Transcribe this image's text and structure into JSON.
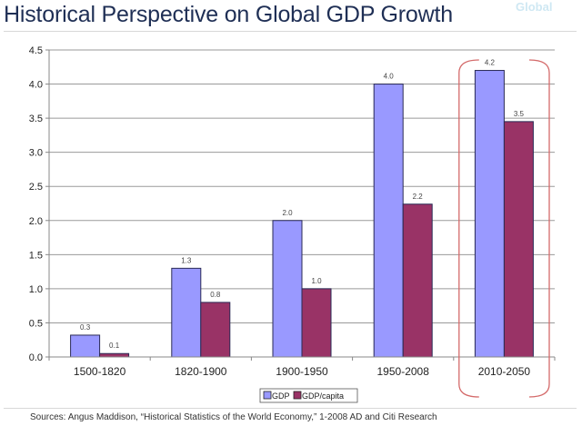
{
  "header": {
    "title": "Historical Perspective on Global GDP Growth",
    "brand": "Global"
  },
  "footer": {
    "source": "Sources: Angus Maddison, “Historical Statistics of the World Economy,” 1-2008 AD and Citi Research"
  },
  "colors": {
    "gdp": "#9999ff",
    "gdp_capita": "#993366",
    "bar_outline": "#2a2a55",
    "highlight": "#d46a6a",
    "gridline": "#9a9a9a"
  },
  "chart_data": {
    "type": "bar",
    "title": "Historical Perspective on Global GDP Growth",
    "xlabel": "",
    "ylabel": "",
    "ylim": [
      0,
      4.5
    ],
    "yticks": [
      "0.0",
      "0.5",
      "1.0",
      "1.5",
      "2.0",
      "2.5",
      "3.0",
      "3.5",
      "4.0",
      "4.5"
    ],
    "grid": true,
    "legend_position": "bottom",
    "categories": [
      "1500-1820",
      "1820-1900",
      "1900-1950",
      "1950-2008",
      "2010-2050"
    ],
    "series": [
      {
        "name": "GDP",
        "values": [
          0.32,
          1.3,
          2.0,
          4.0,
          4.2
        ],
        "labels": [
          "0.3",
          "1.3",
          "2.0",
          "4.0",
          "4.2"
        ]
      },
      {
        "name": "GDP/capita",
        "values": [
          0.05,
          0.8,
          1.0,
          2.24,
          3.45
        ],
        "labels": [
          "0.1",
          "0.8",
          "1.0",
          "2.2",
          "3.5"
        ]
      }
    ],
    "annotations": [
      {
        "type": "highlight-bracket",
        "category": "2010-2050"
      }
    ]
  }
}
